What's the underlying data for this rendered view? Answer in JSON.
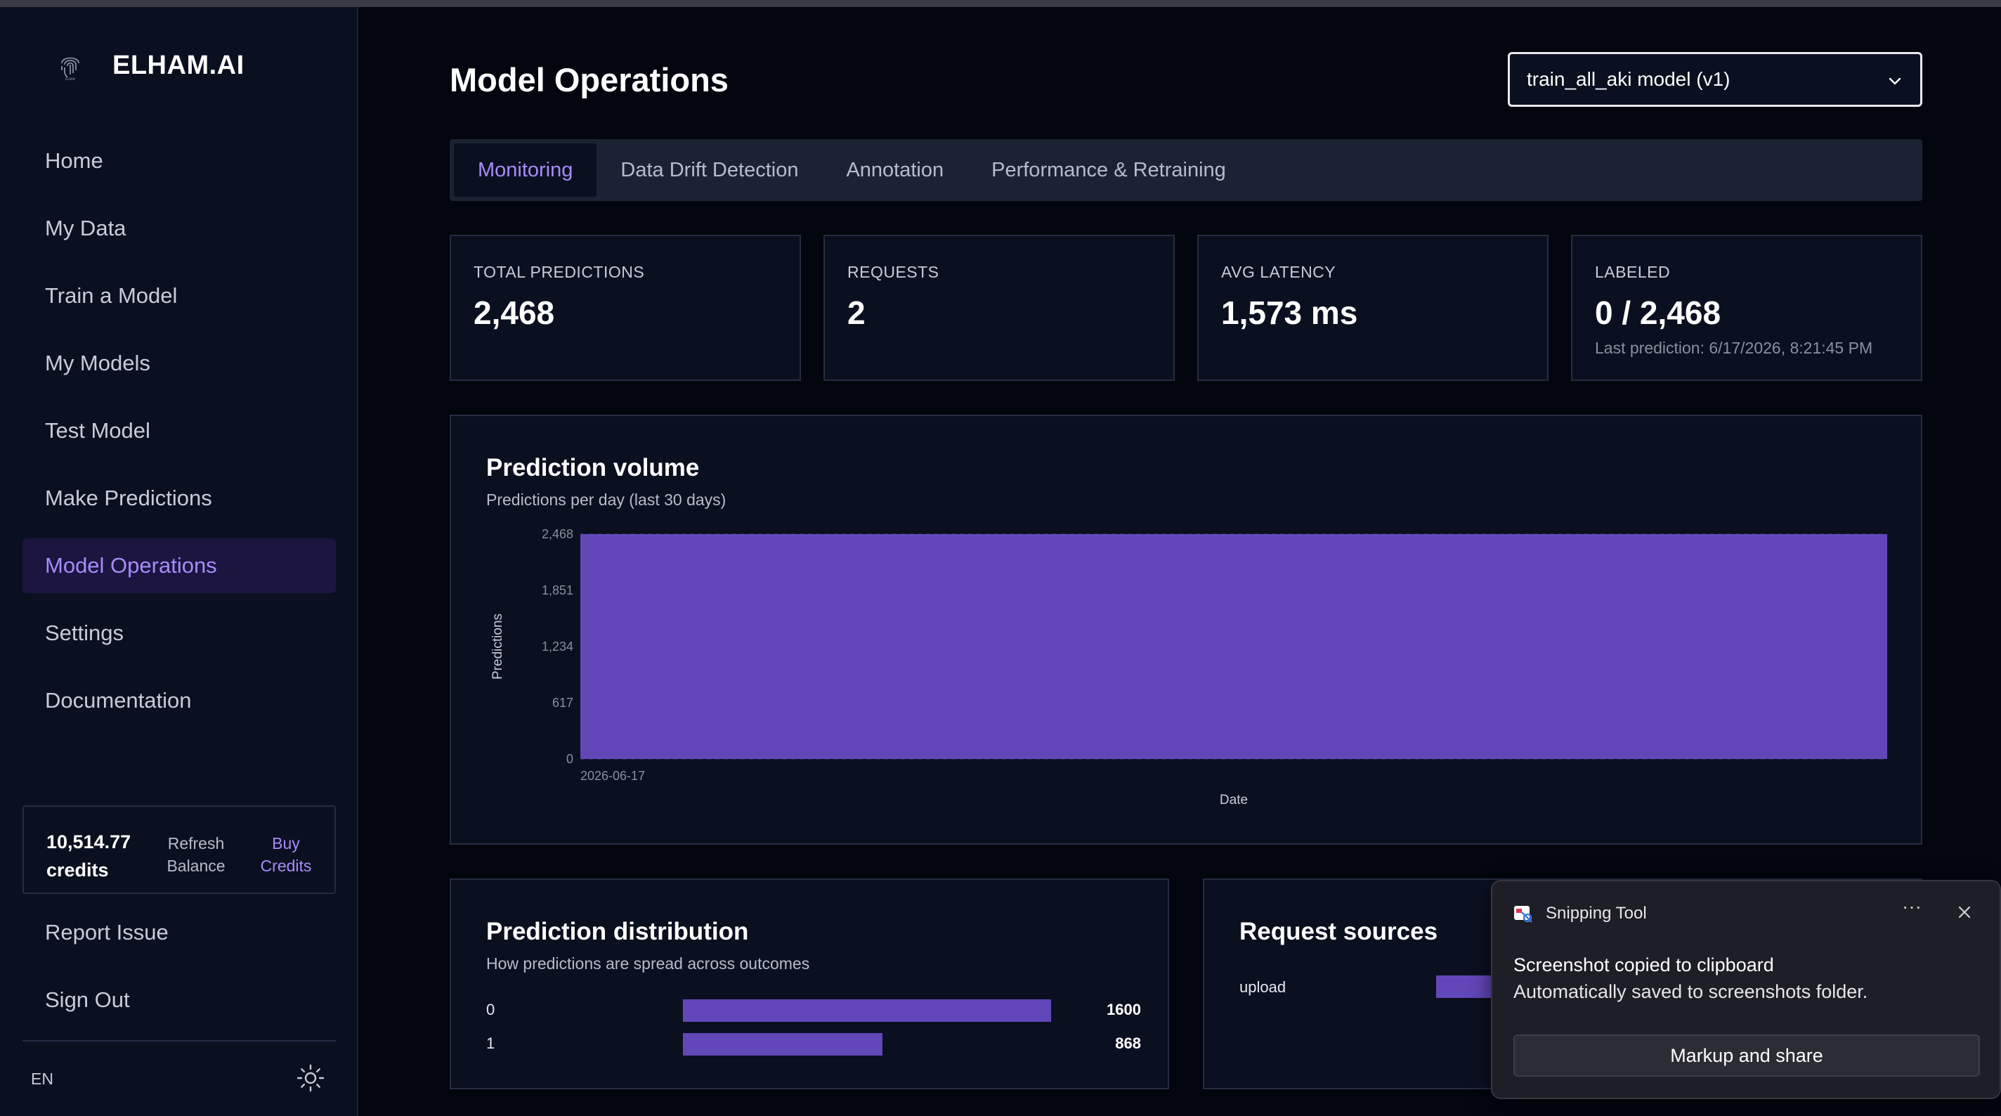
{
  "brand": {
    "name": "ELHAM.AI",
    "logo_icon": "fingerprint-logo-icon"
  },
  "sidebar": {
    "items": [
      {
        "label": "Home"
      },
      {
        "label": "My Data"
      },
      {
        "label": "Train a Model"
      },
      {
        "label": "My Models"
      },
      {
        "label": "Test Model"
      },
      {
        "label": "Make Predictions"
      },
      {
        "label": "Model Operations",
        "active": true
      },
      {
        "label": "Settings"
      },
      {
        "label": "Documentation"
      }
    ],
    "credits": {
      "value": "10,514.77 credits",
      "refresh_label": "Refresh Balance",
      "buy_label": "Buy Credits"
    },
    "bottom_items": [
      {
        "label": "Report Issue"
      },
      {
        "label": "Sign Out"
      }
    ],
    "language": "EN",
    "theme_icon": "sun-icon"
  },
  "header": {
    "title": "Model Operations",
    "model_select": {
      "value": "train_all_aki model (v1)"
    }
  },
  "tabs": [
    {
      "label": "Monitoring",
      "active": true
    },
    {
      "label": "Data Drift Detection"
    },
    {
      "label": "Annotation"
    },
    {
      "label": "Performance & Retraining"
    }
  ],
  "stats": [
    {
      "label": "TOTAL PREDICTIONS",
      "value": "2,468"
    },
    {
      "label": "REQUESTS",
      "value": "2"
    },
    {
      "label": "AVG LATENCY",
      "value": "1,573 ms"
    },
    {
      "label": "LABELED",
      "value": "0 / 2,468",
      "sub": "Last prediction: 6/17/2026, 8:21:45 PM"
    }
  ],
  "volume_panel": {
    "title": "Prediction volume",
    "subtitle": "Predictions per day (last 30 days)"
  },
  "distribution_panel": {
    "title": "Prediction distribution",
    "subtitle": "How predictions are spread across outcomes",
    "rows": [
      {
        "label": "0",
        "value": "1600"
      },
      {
        "label": "1",
        "value": "868"
      }
    ]
  },
  "sources_panel": {
    "title": "Request sources",
    "rows": [
      {
        "label": "upload"
      }
    ]
  },
  "toast": {
    "app": "Snipping Tool",
    "more": "···",
    "line1": "Screenshot copied to clipboard",
    "line2": "Automatically saved to screenshots folder.",
    "button": "Markup and share"
  },
  "colors": {
    "accent": "#a78bfa",
    "bar": "#6247b8",
    "background": "#03050f",
    "panel": "#0b1020"
  },
  "chart_data": [
    {
      "type": "bar",
      "title": "Prediction volume",
      "subtitle": "Predictions per day (last 30 days)",
      "xlabel": "Date",
      "ylabel": "Predictions",
      "categories": [
        "2026-06-17"
      ],
      "values": [
        2468
      ],
      "yticks": [
        "0",
        "617",
        "1,234",
        "1,851",
        "2,468"
      ],
      "ylim": [
        0,
        2468
      ],
      "grid": true
    },
    {
      "type": "bar",
      "orientation": "horizontal",
      "title": "Prediction distribution",
      "categories": [
        "0",
        "1"
      ],
      "values": [
        1600,
        868
      ],
      "xlim": [
        0,
        1600
      ]
    }
  ]
}
